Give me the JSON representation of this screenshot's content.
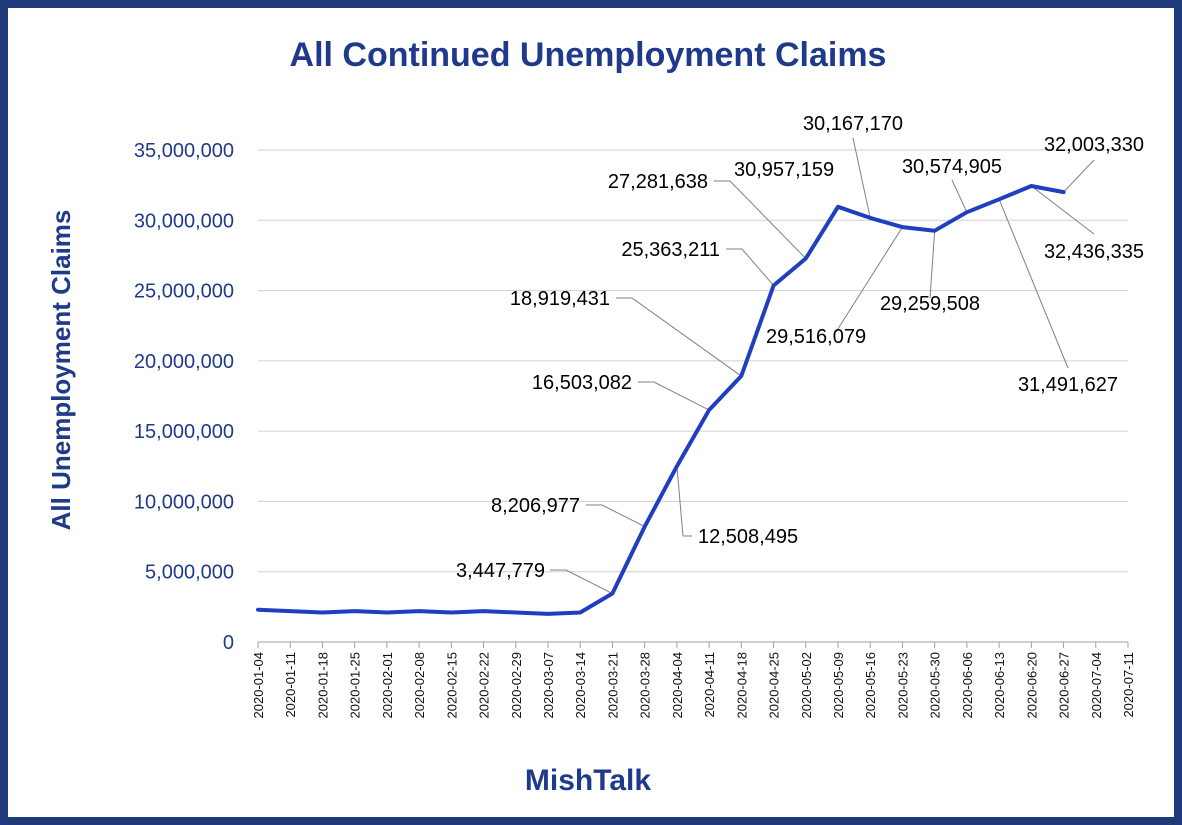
{
  "chart_data": {
    "type": "line",
    "title": "All Continued Unemployment Claims",
    "ylabel": "All Unemployment  Claims",
    "xlabel": "MishTalk",
    "ylim": [
      0,
      35000000
    ],
    "yticks": [
      0,
      5000000,
      10000000,
      15000000,
      20000000,
      25000000,
      30000000,
      35000000
    ],
    "ytick_labels": [
      "0",
      "5,000,000",
      "10,000,000",
      "15,000,000",
      "20,000,000",
      "25,000,000",
      "30,000,000",
      "35,000,000"
    ],
    "grid": true,
    "line_color": "#1f3fbf",
    "categories": [
      "2020-01-04",
      "2020-01-11",
      "2020-01-18",
      "2020-01-25",
      "2020-02-01",
      "2020-02-08",
      "2020-02-15",
      "2020-02-22",
      "2020-02-29",
      "2020-03-07",
      "2020-03-14",
      "2020-03-21",
      "2020-03-28",
      "2020-04-04",
      "2020-04-11",
      "2020-04-18",
      "2020-04-25",
      "2020-05-02",
      "2020-05-09",
      "2020-05-16",
      "2020-05-23",
      "2020-05-30",
      "2020-06-06",
      "2020-06-13",
      "2020-06-20",
      "2020-06-27",
      "2020-07-04",
      "2020-07-11"
    ],
    "series": [
      {
        "values": [
          2300000,
          2200000,
          2100000,
          2200000,
          2100000,
          2200000,
          2100000,
          2200000,
          2100000,
          2000000,
          2100000,
          3447779,
          8206977,
          12508495,
          16503082,
          18919431,
          25363211,
          27281638,
          30957159,
          30167170,
          29516079,
          29259508,
          30574905,
          31491627,
          32436335,
          32003330,
          null,
          null
        ]
      }
    ],
    "annotations": [
      {
        "index": 11,
        "text": "3,447,779"
      },
      {
        "index": 12,
        "text": "8,206,977"
      },
      {
        "index": 13,
        "text": "12,508,495"
      },
      {
        "index": 14,
        "text": "16,503,082"
      },
      {
        "index": 15,
        "text": "18,919,431"
      },
      {
        "index": 16,
        "text": "25,363,211"
      },
      {
        "index": 17,
        "text": "27,281,638"
      },
      {
        "index": 18,
        "text": "30,957,159"
      },
      {
        "index": 19,
        "text": "30,167,170"
      },
      {
        "index": 20,
        "text": "29,516,079"
      },
      {
        "index": 21,
        "text": "29,259,508"
      },
      {
        "index": 22,
        "text": "30,574,905"
      },
      {
        "index": 23,
        "text": "31,491,627"
      },
      {
        "index": 24,
        "text": "32,436,335"
      },
      {
        "index": 25,
        "text": "32,003,330"
      }
    ]
  },
  "colors": {
    "frame": "#1f3a7a",
    "title": "#1f3a8a",
    "line": "#1f3fbf"
  }
}
